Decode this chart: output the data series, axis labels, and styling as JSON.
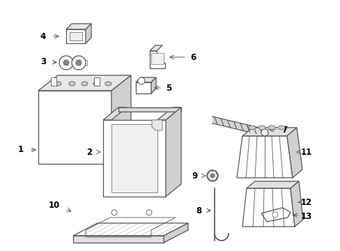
{
  "bg_color": "#ffffff",
  "line_color": "#555555",
  "fig_width": 4.89,
  "fig_height": 3.6,
  "dpi": 100
}
